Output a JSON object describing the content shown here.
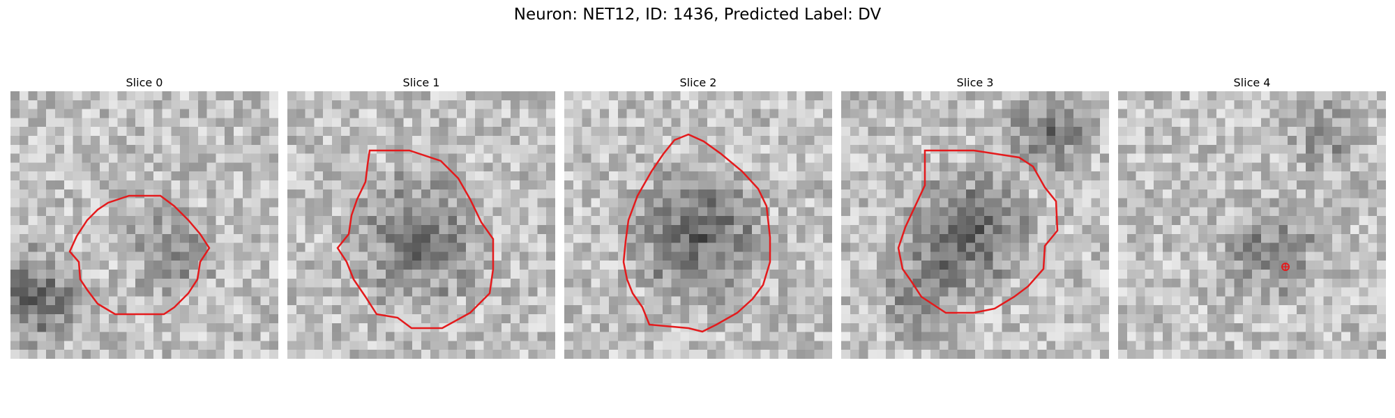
{
  "figure": {
    "title": "Neuron: NET12, ID: 1436, Predicted Label: DV",
    "contour_color": "#e41a1c",
    "panels": [
      {
        "label": "Slice 0",
        "has_contour": true
      },
      {
        "label": "Slice 1",
        "has_contour": true
      },
      {
        "label": "Slice 2",
        "has_contour": true
      },
      {
        "label": "Slice 3",
        "has_contour": true
      },
      {
        "label": "Slice 4",
        "has_contour": false,
        "has_marker": true
      }
    ]
  }
}
